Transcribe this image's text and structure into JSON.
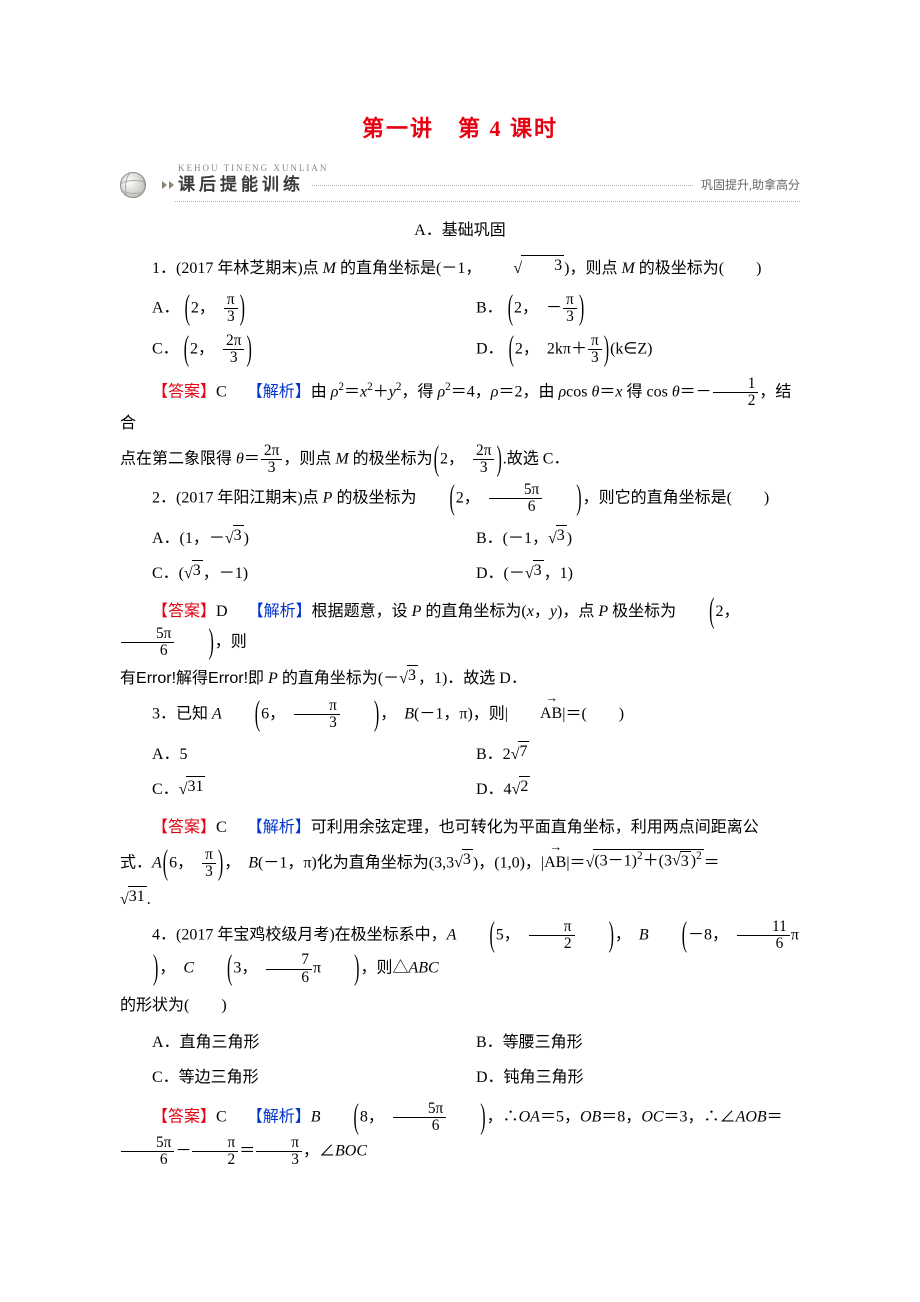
{
  "colors": {
    "accent_red": "#e60012",
    "link_blue": "#0033cc",
    "text": "#000000",
    "muted": "#888888",
    "background": "#ffffff"
  },
  "title": "第一讲　第 4 课时",
  "banner": {
    "pinyin": "KEHOU TINENG XUNLIAN",
    "label": "课后提能训练",
    "right": "巩固提升,助拿高分"
  },
  "section_a": "A．基础巩固",
  "q1": {
    "stem_pre": "1．(2017 年林芝期末)点 ",
    "stem_var1": "M",
    "stem_mid": " 的直角坐标是(－1，",
    "stem_sqrt": "3",
    "stem_post1": ")，则点 ",
    "stem_var2": "M",
    "stem_post2": " 的极坐标为(　　)",
    "A": {
      "label": "A．",
      "rho": "2",
      "num": "π",
      "den": "3"
    },
    "B": {
      "label": "B．",
      "rho": "2",
      "sign": "－",
      "num": "π",
      "den": "3"
    },
    "C": {
      "label": "C．",
      "rho": "2",
      "num": "2π",
      "den": "3"
    },
    "D": {
      "label": "D．",
      "rho": "2",
      "pre": "2kπ＋",
      "num": "π",
      "den": "3",
      "tail": "(k∈Z)"
    },
    "answer_label": "【答案】",
    "answer": "C",
    "explain_label": "【解析】",
    "ex1_a": "由 ",
    "ex1_b": "ρ",
    "ex1_b2": "2",
    "ex1_c": "＝",
    "ex1_d": "x",
    "ex1_d2": "2",
    "ex1_e": "＋",
    "ex1_f": "y",
    "ex1_f2": "2",
    "ex1_g": "，得 ",
    "ex1_h": "ρ",
    "ex1_h2": "2",
    "ex1_i": "＝4，",
    "ex1_j": "ρ",
    "ex1_k": "＝2，由 ",
    "ex1_l": "ρ",
    "ex1_m": "cos ",
    "ex1_n": "θ",
    "ex1_o": "＝",
    "ex1_p": "x",
    "ex1_q": " 得 cos ",
    "ex1_r": "θ",
    "ex1_s": "＝－",
    "ex1_num": "1",
    "ex1_den": "2",
    "ex1_t": "，结合",
    "ex2_a": "点在第二象限得 ",
    "ex2_b": "θ",
    "ex2_c": "＝",
    "ex2_num1": "2π",
    "ex2_den1": "3",
    "ex2_d": "，则点 ",
    "ex2_e": "M",
    "ex2_f": " 的极坐标为",
    "ex2_rho": "2",
    "ex2_num2": "2π",
    "ex2_den2": "3",
    "ex2_g": ".故选 C．"
  },
  "q2": {
    "stem_a": "2．(2017 年阳江期末)点 ",
    "stem_b": "P",
    "stem_c": " 的极坐标为",
    "rho": "2",
    "num": "5π",
    "den": "6",
    "stem_d": "，则它的直角坐标是(　　)",
    "A": {
      "label": "A．(1，－",
      "sqrt": "3",
      "tail": ")"
    },
    "B": {
      "label": "B．(－1，",
      "sqrt": "3",
      "tail": ")"
    },
    "C": {
      "label": "C．(",
      "sqrt": "3",
      "tail": "，－1)"
    },
    "D": {
      "label": "D．(－",
      "sqrt": "3",
      "tail": "，1)"
    },
    "answer_label": "【答案】",
    "answer": "D",
    "explain_label": "【解析】",
    "ex_a": "根据题意，设 ",
    "ex_b": "P",
    "ex_c": " 的直角坐标为(",
    "ex_d": "x",
    "ex_e": "，",
    "ex_f": "y",
    "ex_g": ")，点 ",
    "ex_h": "P",
    "ex_i": " 极坐标为",
    "ex_rho": "2",
    "ex_num": "5π",
    "ex_den": "6",
    "ex_j": "，则",
    "ex2_a": "有",
    "ex2_b": "Error!",
    "ex2_c": "解得",
    "ex2_d": "Error!",
    "ex2_e": "即 ",
    "ex2_f": "P",
    "ex2_g": " 的直角坐标为(－",
    "ex2_sqrt": "3",
    "ex2_h": "，1)．故选 D．"
  },
  "q3": {
    "stem_a": "3．已知 ",
    "A_lbl": "A",
    "rhoA": "6",
    "numA": "π",
    "denA": "3",
    "stem_b": "B",
    "B_coord": "(－1，π)",
    "stem_c": "，则|",
    "vec": "AB",
    "stem_d": "|＝(　　)",
    "A": "A．5",
    "B_pre": "B．2",
    "B_sqrt": "7",
    "C_pre": "C．",
    "C_sqrt": "31",
    "D_pre": "D．4",
    "D_sqrt": "2",
    "answer_label": "【答案】",
    "answer": "C",
    "explain_label": "【解析】",
    "ex_a": "可利用余弦定理，也可转化为平面直角坐标，利用两点间距离公",
    "ex_b": "式．",
    "ex_c": "A",
    "rhoA2": "6",
    "numA2": "π",
    "denA2": "3",
    "ex_d": "B",
    "B_coord2": "(－1，π)",
    "ex_e": "化为直角坐标为(3,3",
    "ex_sqrt1": "3",
    "ex_f": ")，(1,0)，|",
    "vec2": "AB",
    "ex_g": "|＝",
    "root_inner_a": "(3－1)",
    "root_sup1": "2",
    "root_inner_b": "＋(3",
    "root_sqrt": "3",
    "root_inner_c": ")",
    "root_sup2": "2",
    "ex_h": "＝",
    "final_sqrt": "31",
    "ex_i": "."
  },
  "q4": {
    "stem_a": "4．(2017 年宝鸡校级月考)在极坐标系中，",
    "A_lbl": "A",
    "rhoA": "5",
    "numA": "π",
    "denA": "2",
    "B_lbl": "B",
    "rhoB": "－8",
    "numB": "11",
    "denB": "6",
    "B_pi": "π",
    "C_lbl": "C",
    "rhoC": "3",
    "numC": "7",
    "denC": "6",
    "C_pi": "π",
    "stem_b": "，则△",
    "stem_c": "ABC",
    "stem_d": "的形状为(　　)",
    "A": "A．直角三角形",
    "B": "B．等腰三角形",
    "C": "C．等边三角形",
    "D": "D．钝角三角形",
    "answer_label": "【答案】",
    "answer": "C",
    "explain_label": "【解析】",
    "ex_B": "B",
    "rhoB2": "8",
    "numB2": "5π",
    "denB2": "6",
    "ex_a": "，∴",
    "ex_b": "OA",
    "ex_c": "＝5，",
    "ex_d": "OB",
    "ex_e": "＝8，",
    "ex_f": "OC",
    "ex_g": "＝3，∴∠",
    "ex_h": "AOB",
    "ex_i": "＝",
    "f1n": "5π",
    "f1d": "6",
    "minus1": "－",
    "f2n": "π",
    "f2d": "2",
    "eq1": "＝",
    "f3n": "π",
    "f3d": "3",
    "ex_j": "，∠",
    "ex_k": "BOC"
  },
  "comma": "，",
  "comma_sp": "，　"
}
